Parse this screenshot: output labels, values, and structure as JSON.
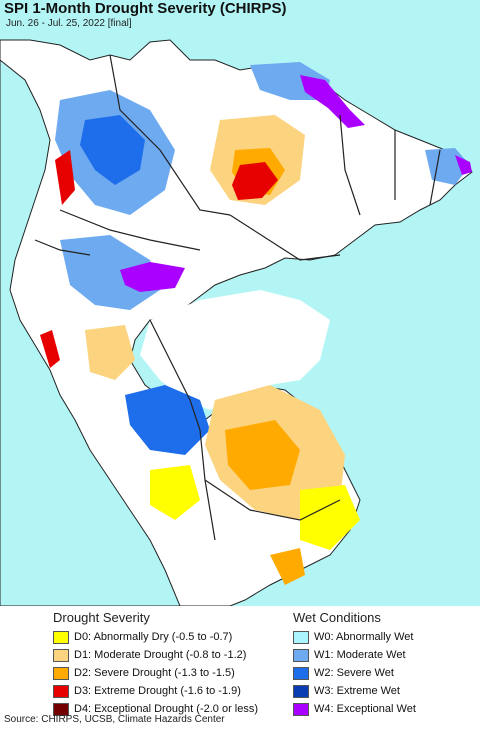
{
  "title": "SPI 1-Month Drought Severity (CHIRPS)",
  "subtitle": "Jun. 26 - Jul. 25, 2022 [final]",
  "colors": {
    "ocean": "#b3f5f5",
    "land": "#ffffff",
    "border": "#222222"
  },
  "legend": {
    "drought": {
      "heading": "Drought Severity",
      "items": [
        {
          "label": "D0: Abnormally Dry (-0.5 to -0.7)",
          "color": "#ffff00"
        },
        {
          "label": "D1: Moderate Drought (-0.8 to -1.2)",
          "color": "#fcd37f"
        },
        {
          "label": "D2: Severe Drought (-1.3 to -1.5)",
          "color": "#ffaa00"
        },
        {
          "label": "D3: Extreme Drought (-1.6 to -1.9)",
          "color": "#e60000"
        },
        {
          "label": "D4: Exceptional Drought (-2.0 or less)",
          "color": "#730000"
        }
      ]
    },
    "wet": {
      "heading": "Wet Conditions",
      "items": [
        {
          "label": "W0: Abnormally Wet",
          "color": "#aaf5ff"
        },
        {
          "label": "W1: Moderate Wet",
          "color": "#6eaaf0"
        },
        {
          "label": "W2: Severe Wet",
          "color": "#1e6eeb"
        },
        {
          "label": "W3: Extreme Wet",
          "color": "#0a3cb4"
        },
        {
          "label": "W4: Exceptional Wet",
          "color": "#aa00ff"
        }
      ]
    }
  },
  "source": "Source: CHIRPS, UCSB, Climate Hazards Center"
}
